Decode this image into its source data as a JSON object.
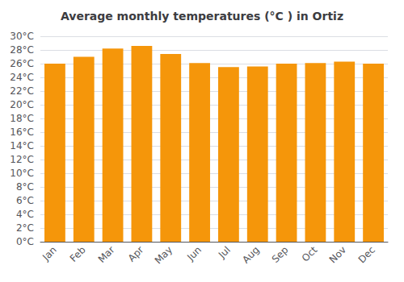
{
  "chart_data": {
    "type": "bar",
    "title": "Average monthly temperatures (°C ) in Ortiz",
    "categories": [
      "Jan",
      "Feb",
      "Mar",
      "Apr",
      "May",
      "Jun",
      "Jul",
      "Aug",
      "Sep",
      "Oct",
      "Nov",
      "Dec"
    ],
    "values": [
      26.0,
      27.0,
      28.2,
      28.6,
      27.4,
      26.1,
      25.5,
      25.6,
      26.0,
      26.1,
      26.3,
      26.0
    ],
    "color": "#F5960A",
    "ylim": [
      0,
      30
    ],
    "yticks": [
      {
        "value": 0,
        "label": "0°C"
      },
      {
        "value": 2,
        "label": "2°C"
      },
      {
        "value": 4,
        "label": "4°C"
      },
      {
        "value": 6,
        "label": "6°C"
      },
      {
        "value": 8,
        "label": "8°C"
      },
      {
        "value": 10,
        "label": "10°C"
      },
      {
        "value": 12,
        "label": "12°C"
      },
      {
        "value": 14,
        "label": "14°C"
      },
      {
        "value": 16,
        "label": "16°C"
      },
      {
        "value": 18,
        "label": "18°C"
      },
      {
        "value": 20,
        "label": "20°C"
      },
      {
        "value": 22,
        "label": "22°C"
      },
      {
        "value": 24,
        "label": "24°C"
      },
      {
        "value": 26,
        "label": "26°C"
      },
      {
        "value": 28,
        "label": "28°C"
      },
      {
        "value": 30,
        "label": "30°C"
      }
    ],
    "grid": true
  }
}
